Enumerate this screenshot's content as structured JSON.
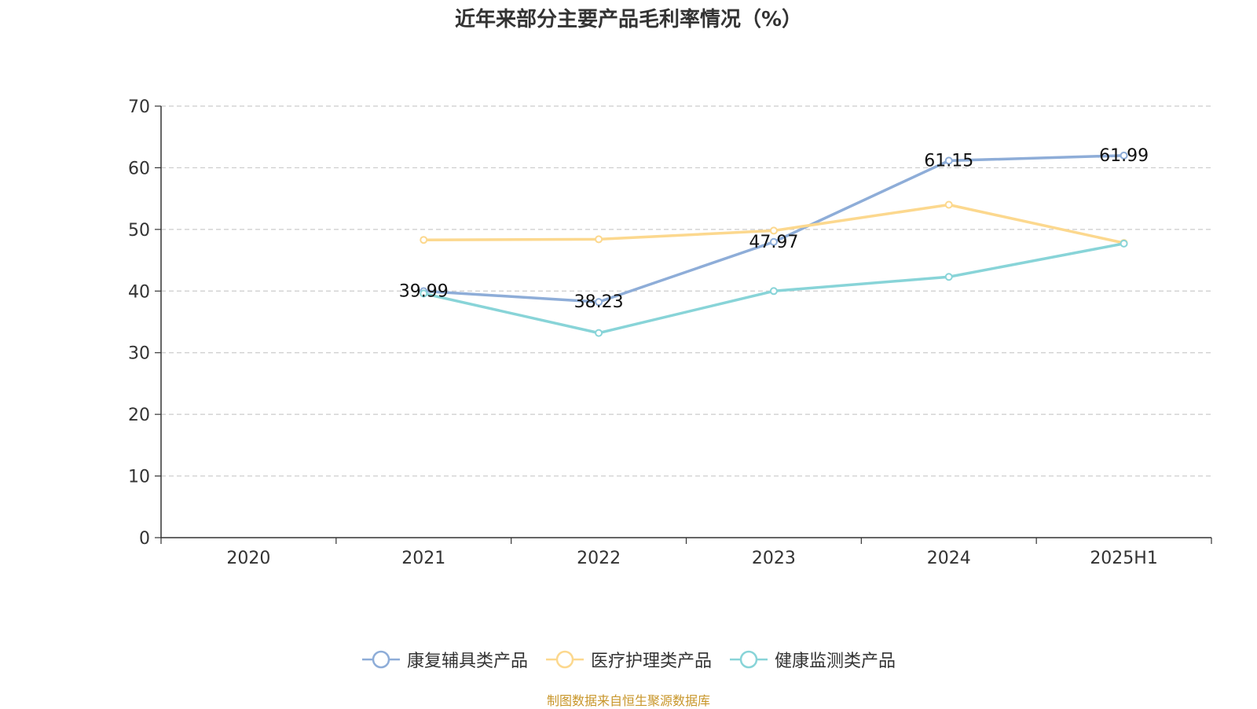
{
  "chart_data": {
    "type": "line",
    "title": "近年来部分主要产品毛利率情况（%）",
    "categories": [
      "2020",
      "2021",
      "2022",
      "2023",
      "2024",
      "2025H1"
    ],
    "ylim": [
      0,
      70
    ],
    "yticks": [
      0,
      10,
      20,
      30,
      40,
      50,
      60,
      70
    ],
    "grid": true,
    "legend_position": "bottom",
    "series": [
      {
        "name": "康复辅具类产品",
        "color": "#8eadd8",
        "values": [
          null,
          39.99,
          38.23,
          47.97,
          61.15,
          61.99
        ],
        "labels": [
          "",
          "39.99",
          "38.23",
          "47.97",
          "61.15",
          "61.99"
        ]
      },
      {
        "name": "医疗护理类产品",
        "color": "#fcd88e",
        "values": [
          null,
          48.3,
          48.4,
          49.8,
          54.0,
          47.8
        ],
        "labels": [
          "",
          "",
          "",
          "",
          "",
          ""
        ]
      },
      {
        "name": "健康监测类产品",
        "color": "#88d4d8",
        "values": [
          null,
          39.6,
          33.2,
          40.0,
          42.3,
          47.7
        ],
        "labels": [
          "",
          "",
          "",
          "",
          "",
          ""
        ]
      }
    ]
  },
  "source_note": "制图数据来自恒生聚源数据库"
}
